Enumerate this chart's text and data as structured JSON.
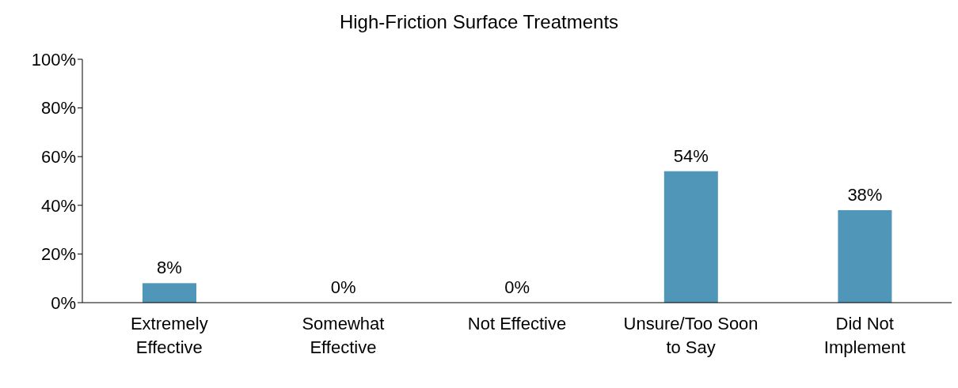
{
  "chart_data": {
    "type": "bar",
    "title": "High-Friction Surface Treatments",
    "categories": [
      "Extremely Effective",
      "Somewhat Effective",
      "Not Effective",
      "Unsure/Too Soon to Say",
      "Did Not Implement"
    ],
    "values": [
      8,
      0,
      0,
      54,
      38
    ],
    "value_labels": [
      "8%",
      "0%",
      "0%",
      "54%",
      "38%"
    ],
    "color": "#5096b8",
    "ylim": [
      0,
      100
    ],
    "yticks": [
      {
        "value": 0,
        "label": "0%"
      },
      {
        "value": 20,
        "label": "20%"
      },
      {
        "value": 40,
        "label": "40%"
      },
      {
        "value": 60,
        "label": "60%"
      },
      {
        "value": 80,
        "label": "80%"
      },
      {
        "value": 100,
        "label": "100%"
      }
    ],
    "grid": false,
    "legend": false
  }
}
